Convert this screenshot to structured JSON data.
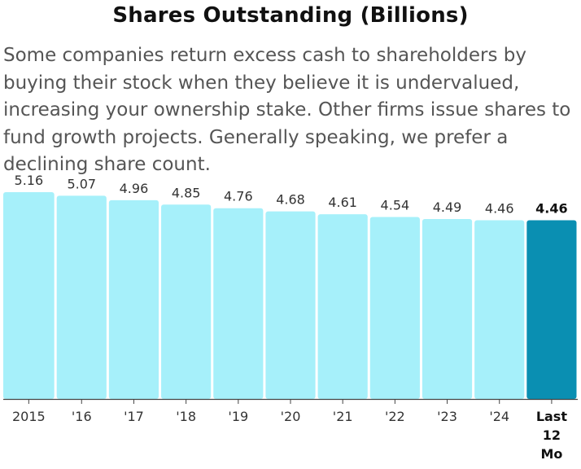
{
  "chart_data": {
    "type": "bar",
    "title": "Shares Outstanding (Billions)",
    "description": "Some companies return excess cash to shareholders by buying their stock when they believe it is undervalued, increasing your ownership stake. Other firms issue shares to fund growth projects. Generally speaking, we prefer a declining share count.",
    "categories": [
      "2015",
      "'16",
      "'17",
      "'18",
      "'19",
      "'20",
      "'21",
      "'22",
      "'23",
      "'24",
      "Last 12 Mo"
    ],
    "values": [
      5.16,
      5.07,
      4.96,
      4.85,
      4.76,
      4.68,
      4.61,
      4.54,
      4.49,
      4.46,
      4.46
    ],
    "value_labels": [
      "5.16",
      "5.07",
      "4.96",
      "4.85",
      "4.76",
      "4.68",
      "4.61",
      "4.54",
      "4.49",
      "4.46",
      "4.46"
    ],
    "highlight_index": 10,
    "ylim": [
      0,
      5.16
    ],
    "xlabel": "",
    "ylabel": "",
    "grid": false,
    "colors": {
      "bar": "#a6f0fa",
      "bar_highlight": "#0a8fb2",
      "axis": "#444444"
    }
  }
}
